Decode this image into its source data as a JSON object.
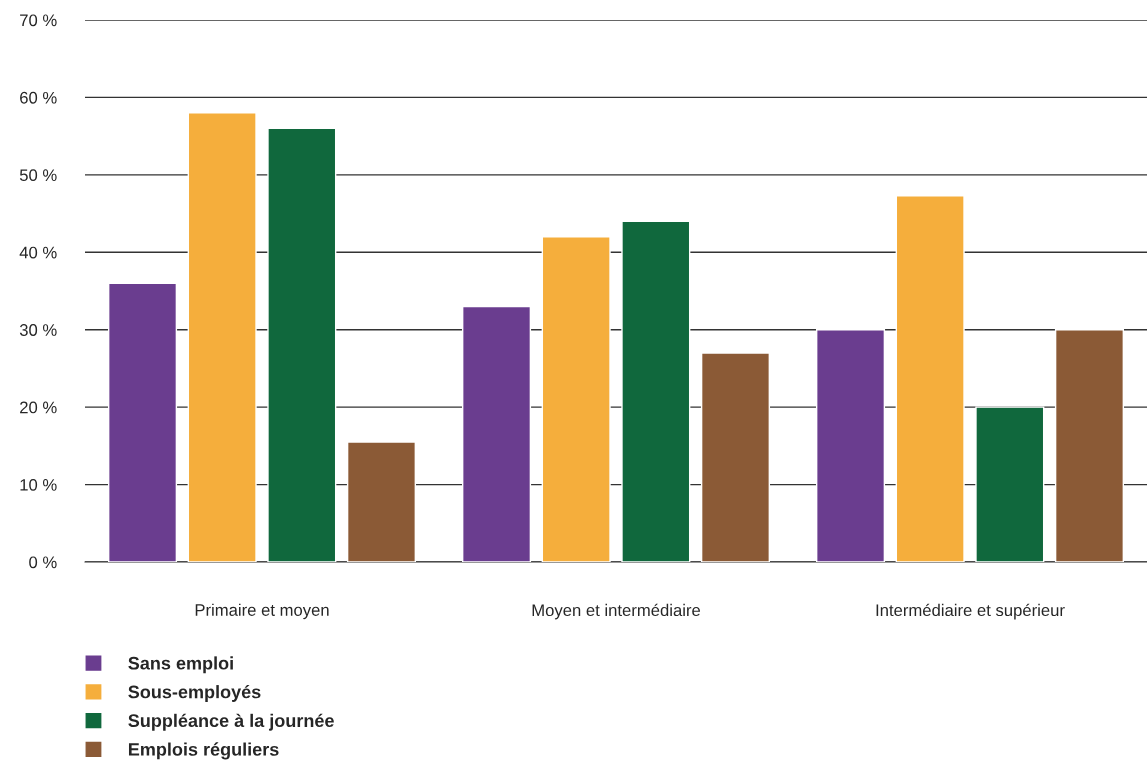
{
  "chart_data": {
    "type": "bar",
    "categories": [
      "Primaire et moyen",
      "Moyen et intermédiaire",
      "Intermédiaire et supérieur"
    ],
    "series": [
      {
        "name": "Sans emploi",
        "color": "#6a3d8f",
        "values": [
          36,
          33,
          30
        ]
      },
      {
        "name": "Sous-employés",
        "color": "#f5ae3c",
        "values": [
          58,
          42,
          47.3
        ]
      },
      {
        "name": "Suppléance à la journée",
        "color": "#10683d",
        "values": [
          56,
          44,
          20
        ]
      },
      {
        "name": "Emplois réguliers",
        "color": "#8b5a36",
        "values": [
          15.5,
          27,
          30
        ]
      }
    ],
    "ylim": [
      0,
      70
    ],
    "yticks": [
      {
        "value": 0,
        "label": "0 %"
      },
      {
        "value": 10,
        "label": "10 %"
      },
      {
        "value": 20,
        "label": "20 %"
      },
      {
        "value": 30,
        "label": "30 %"
      },
      {
        "value": 40,
        "label": "40 %"
      },
      {
        "value": 50,
        "label": "50 %"
      },
      {
        "value": 60,
        "label": "60 %"
      },
      {
        "value": 70,
        "label": "70 %"
      }
    ],
    "grid": "y",
    "legend": "bottom left"
  }
}
